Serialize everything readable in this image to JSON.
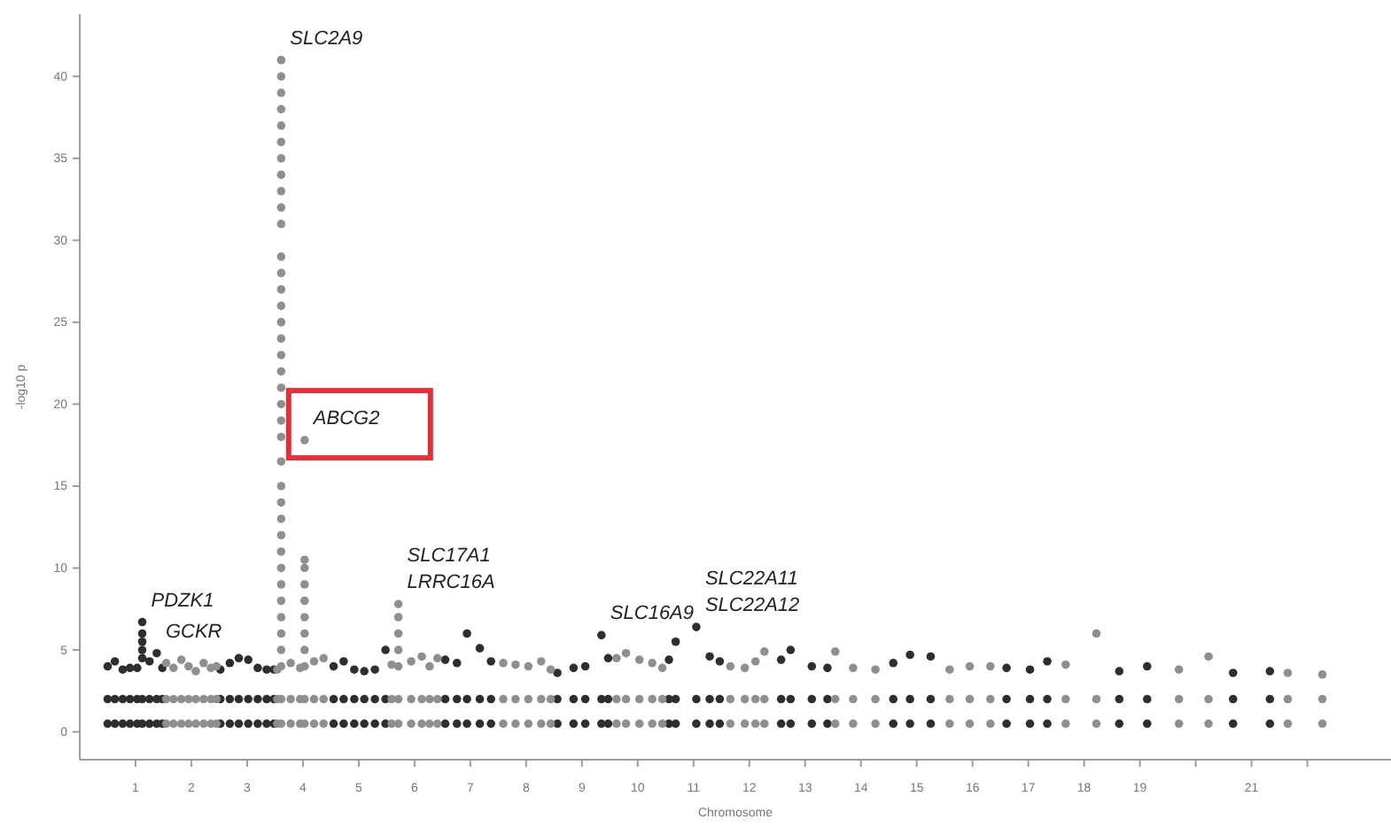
{
  "chart_data": {
    "type": "scatter",
    "xlabel": "Chromosome",
    "ylabel": "-log10 p",
    "marker": "circle",
    "xlim": [
      0,
      23.5
    ],
    "ylim": [
      -1.7,
      43.8
    ],
    "yticks": [
      0,
      5,
      10,
      15,
      20,
      25,
      30,
      35,
      40
    ],
    "xticks": [
      1,
      2,
      3,
      4,
      5,
      6,
      7,
      8,
      9,
      10,
      11,
      12,
      13,
      14,
      15,
      16,
      17,
      18,
      19,
      {
        "value": 20,
        "label": null
      },
      21,
      {
        "value": 22,
        "label": null
      }
    ],
    "series": [
      {
        "color": "#2e2e2e",
        "x": [
          0.5,
          0.5,
          0.5,
          0.63,
          0.63,
          0.63,
          0.77,
          0.77,
          0.77,
          0.9,
          0.9,
          0.9,
          1.03,
          1.03,
          1.03,
          1.12,
          1.12,
          1.12,
          1.12,
          1.12,
          1.12,
          1.12,
          1.25,
          1.25,
          1.25,
          1.38,
          1.38,
          1.38,
          1.48,
          1.48,
          1.48,
          2.52,
          2.52,
          2.52,
          2.69,
          2.69,
          2.69,
          2.85,
          2.85,
          2.85,
          3.02,
          3.02,
          3.02,
          3.19,
          3.19,
          3.19,
          3.35,
          3.35,
          3.35,
          3.48,
          3.48,
          3.48,
          4.55,
          4.55,
          4.55,
          4.73,
          4.73,
          4.73,
          4.92,
          4.92,
          4.92,
          5.1,
          5.1,
          5.1,
          5.29,
          5.29,
          5.29,
          5.48,
          5.48,
          5.48,
          6.55,
          6.55,
          6.55,
          6.76,
          6.76,
          6.76,
          6.94,
          6.94,
          6.94,
          7.17,
          7.17,
          7.17,
          7.37,
          7.37,
          7.37,
          8.56,
          8.56,
          8.56,
          8.85,
          8.85,
          8.85,
          9.06,
          9.06,
          9.06,
          9.35,
          9.35,
          9.35,
          9.47,
          9.47,
          9.47,
          10.56,
          10.56,
          10.56,
          10.68,
          10.68,
          10.68,
          11.05,
          11.05,
          11.05,
          11.29,
          11.29,
          11.29,
          11.47,
          11.47,
          11.47,
          12.57,
          12.57,
          12.57,
          12.74,
          12.74,
          12.74,
          13.12,
          13.12,
          13.12,
          13.4,
          13.4,
          13.4,
          14.58,
          14.58,
          14.58,
          14.88,
          14.88,
          14.88,
          15.25,
          15.25,
          15.25,
          16.61,
          16.61,
          16.61,
          17.03,
          17.03,
          17.03,
          17.34,
          17.34,
          17.34,
          18.63,
          18.63,
          18.63,
          19.13,
          19.13,
          19.13,
          20.67,
          20.67,
          20.67,
          21.33,
          21.33,
          21.33
        ],
        "values": [
          0.5,
          2,
          4.0,
          0.5,
          2,
          4.3,
          0.5,
          2,
          3.8,
          0.5,
          2,
          3.9,
          0.5,
          2,
          3.9,
          0.5,
          2,
          4.5,
          5,
          5.5,
          6,
          6.7,
          0.5,
          2,
          4.3,
          0.5,
          2,
          4.8,
          0.5,
          2,
          3.9,
          0.5,
          2,
          3.8,
          0.5,
          2,
          4.2,
          0.5,
          2,
          4.5,
          0.5,
          2,
          4.4,
          0.5,
          2,
          3.9,
          0.5,
          2,
          3.8,
          0.5,
          2,
          3.8,
          0.5,
          2,
          4.0,
          0.5,
          2,
          4.3,
          0.5,
          2,
          3.8,
          0.5,
          2,
          3.7,
          0.5,
          2,
          3.8,
          0.5,
          2,
          5.0,
          0.5,
          2,
          4.4,
          0.5,
          2,
          4.2,
          0.5,
          2,
          6.0,
          0.5,
          2,
          5.1,
          0.5,
          2,
          4.3,
          0.5,
          2,
          3.6,
          0.5,
          2,
          3.9,
          0.5,
          2,
          4.0,
          0.5,
          2,
          5.9,
          0.5,
          2,
          4.5,
          0.5,
          2,
          4.4,
          0.5,
          2,
          5.5,
          0.5,
          2,
          6.4,
          0.5,
          2,
          4.6,
          0.5,
          2,
          4.3,
          0.5,
          2,
          4.4,
          0.5,
          2,
          5.0,
          0.5,
          2,
          4.0,
          0.5,
          2,
          3.9,
          0.5,
          2,
          4.2,
          0.5,
          2,
          4.7,
          0.5,
          2,
          4.6,
          0.5,
          2,
          3.9,
          0.5,
          2,
          3.8,
          0.5,
          2,
          4.3,
          0.5,
          2,
          3.7,
          0.5,
          2,
          4.0,
          0.5,
          2,
          3.6,
          0.5,
          2,
          3.7
        ]
      },
      {
        "color": "#8f8f8f",
        "x": [
          1.55,
          1.55,
          1.55,
          1.68,
          1.68,
          1.68,
          1.82,
          1.82,
          1.82,
          1.95,
          1.95,
          1.95,
          2.08,
          2.08,
          2.08,
          2.22,
          2.22,
          2.22,
          2.35,
          2.35,
          2.35,
          2.45,
          2.45,
          2.45,
          3.54,
          3.54,
          3.54,
          3.61,
          3.61,
          3.61,
          3.61,
          3.61,
          3.61,
          3.61,
          3.61,
          3.61,
          3.61,
          3.61,
          3.61,
          3.61,
          3.61,
          3.61,
          3.61,
          3.61,
          3.61,
          3.61,
          3.61,
          3.61,
          3.61,
          3.61,
          3.61,
          3.61,
          3.61,
          3.61,
          3.61,
          3.61,
          3.61,
          3.61,
          3.61,
          3.61,
          3.61,
          3.61,
          3.61,
          3.61,
          3.61,
          3.78,
          3.78,
          3.78,
          3.95,
          3.95,
          3.95,
          4.03,
          4.03,
          4.03,
          4.03,
          4.03,
          4.03,
          4.03,
          4.03,
          4.03,
          4.03,
          4.03,
          4.2,
          4.2,
          4.2,
          4.37,
          4.37,
          4.37,
          5.59,
          5.59,
          5.59,
          5.71,
          5.71,
          5.71,
          5.71,
          5.71,
          5.71,
          5.71,
          5.94,
          5.94,
          5.94,
          6.13,
          6.13,
          6.13,
          6.27,
          6.27,
          6.27,
          6.41,
          6.41,
          6.41,
          7.59,
          7.59,
          7.59,
          7.81,
          7.81,
          7.81,
          8.04,
          8.04,
          8.04,
          8.27,
          8.27,
          8.27,
          8.44,
          8.44,
          8.44,
          9.62,
          9.62,
          9.62,
          9.79,
          9.79,
          9.79,
          10.03,
          10.03,
          10.03,
          10.26,
          10.26,
          10.26,
          10.44,
          10.44,
          10.44,
          11.66,
          11.66,
          11.66,
          11.92,
          11.92,
          11.92,
          12.11,
          12.11,
          12.11,
          12.27,
          12.27,
          12.27,
          13.54,
          13.54,
          13.54,
          13.86,
          13.86,
          13.86,
          14.26,
          14.26,
          14.26,
          15.59,
          15.59,
          15.59,
          15.95,
          15.95,
          15.95,
          16.32,
          16.32,
          16.32,
          17.67,
          17.67,
          17.67,
          18.22,
          18.22,
          18.22,
          19.7,
          19.7,
          19.7,
          20.23,
          20.23,
          20.23,
          21.65,
          21.65,
          21.65,
          22.27,
          22.27,
          22.27
        ],
        "values": [
          0.5,
          2,
          4.2,
          0.5,
          2,
          3.9,
          0.5,
          2,
          4.4,
          0.5,
          2,
          4.0,
          0.5,
          2,
          3.7,
          0.5,
          2,
          4.2,
          0.5,
          2,
          3.9,
          0.5,
          2,
          4.0,
          0.5,
          2,
          3.8,
          0.5,
          2,
          4,
          5,
          6,
          7,
          8,
          9,
          10,
          11,
          12,
          13,
          14,
          15,
          16.5,
          18,
          19,
          20,
          21,
          22,
          23,
          24,
          25,
          26,
          27,
          28,
          29,
          31,
          32,
          33,
          34,
          35,
          36,
          37,
          38,
          39,
          40,
          41,
          0.5,
          2,
          4.2,
          0.5,
          2,
          3.9,
          0.5,
          2,
          4,
          5,
          6,
          7,
          8,
          9,
          10,
          10.5,
          17.8,
          0.5,
          2,
          4.3,
          0.5,
          2,
          4.5,
          0.5,
          2,
          4.1,
          0.5,
          2,
          4,
          5,
          6,
          7,
          7.8,
          0.5,
          2,
          4.3,
          0.5,
          2,
          4.6,
          0.5,
          2,
          4.0,
          0.5,
          2,
          4.5,
          0.5,
          2,
          4.2,
          0.5,
          2,
          4.1,
          0.5,
          2,
          4.0,
          0.5,
          2,
          4.3,
          0.5,
          2,
          3.8,
          0.5,
          2,
          4.5,
          0.5,
          2,
          4.8,
          0.5,
          2,
          4.4,
          0.5,
          2,
          4.2,
          0.5,
          2,
          3.9,
          0.5,
          2,
          4.0,
          0.5,
          2,
          3.9,
          0.5,
          2,
          4.3,
          0.5,
          2,
          4.9,
          0.5,
          2,
          4.9,
          0.5,
          2,
          3.9,
          0.5,
          2,
          3.8,
          0.5,
          2,
          3.8,
          0.5,
          2,
          4.0,
          0.5,
          2,
          4.0,
          0.5,
          2,
          4.1,
          0.5,
          2,
          6.0,
          0.5,
          2,
          3.8,
          0.5,
          2,
          4.6,
          0.5,
          2,
          3.6,
          0.5,
          2,
          3.5
        ]
      }
    ],
    "annotations": [
      {
        "text": "SLC2A9",
        "x": 3.61,
        "y": 41
      },
      {
        "text": "ABCG2",
        "x": 4.03,
        "y": 17.8
      },
      {
        "text": "PDZK1",
        "x": 1.12,
        "y": 6.7
      },
      {
        "text": "GCKR",
        "x": 1.38,
        "y": 4.8
      },
      {
        "text": "SLC17A1",
        "x": 5.71,
        "y": 7.8
      },
      {
        "text": "LRRC16A",
        "x": 5.71,
        "y": 7.8
      },
      {
        "text": "SLC16A9",
        "x": 9.35,
        "y": 5.9
      },
      {
        "text": "SLC22A11",
        "x": 11.05,
        "y": 6.4
      },
      {
        "text": "SLC22A12",
        "x": 11.05,
        "y": 6.4
      }
    ]
  }
}
